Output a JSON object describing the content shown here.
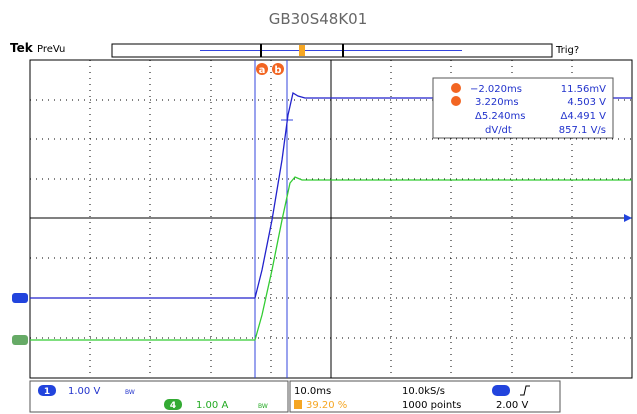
{
  "title": "GB30S48K01",
  "top_bar": {
    "brand": "Tek",
    "mode": "PreVu",
    "trigger": "Trig?"
  },
  "cursors": {
    "a_label": "a",
    "b_label": "b",
    "a_time": "−2.020ms",
    "a_value": "11.56mV",
    "b_time": "3.220ms",
    "b_value": "4.503 V",
    "delta_time": "Δ5.240ms",
    "delta_value": "Δ4.491 V",
    "rate_label": "dV/dt",
    "rate_value": "857.1 V/s"
  },
  "status": {
    "ch1_number": "1",
    "ch1_scale": "1.00 V",
    "ch4_number": "4",
    "ch4_scale": "1.00 A",
    "timebase": "10.0ms",
    "trigger_pos": "39.20 %",
    "sample_rate": "10.0kS/s",
    "record": "1000 points",
    "trigger_level": "2.00 V",
    "bw": "BW"
  }
}
